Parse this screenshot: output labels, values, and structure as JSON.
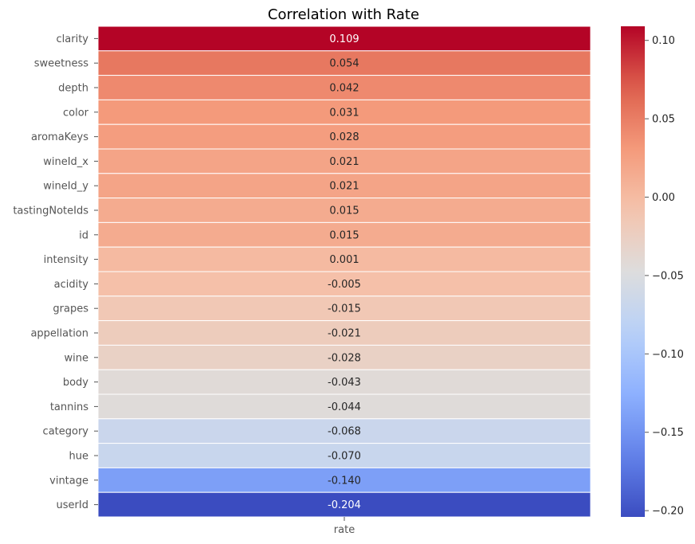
{
  "chart_data": {
    "type": "heatmap",
    "title": "Correlation with Rate",
    "xlabel": "",
    "ylabel": "",
    "columns": [
      "rate"
    ],
    "rows": [
      "clarity",
      "sweetness",
      "depth",
      "color",
      "aromaKeys",
      "wineId_x",
      "wineId_y",
      "tastingNoteIds",
      "id",
      "intensity",
      "acidity",
      "grapes",
      "appellation",
      "wine",
      "body",
      "tannins",
      "category",
      "hue",
      "vintage",
      "userId"
    ],
    "values": [
      0.109,
      0.054,
      0.042,
      0.031,
      0.028,
      0.021,
      0.021,
      0.015,
      0.015,
      0.001,
      -0.005,
      -0.015,
      -0.021,
      -0.028,
      -0.043,
      -0.044,
      -0.068,
      -0.07,
      -0.14,
      -0.204
    ],
    "value_labels": [
      "0.109",
      "0.054",
      "0.042",
      "0.031",
      "0.028",
      "0.021",
      "0.021",
      "0.015",
      "0.015",
      "0.001",
      "-0.005",
      "-0.015",
      "-0.021",
      "-0.028",
      "-0.043",
      "-0.044",
      "-0.068",
      "-0.070",
      "-0.140",
      "-0.204"
    ],
    "colormap": "coolwarm",
    "colorbar": {
      "range": [
        -0.204,
        0.109
      ],
      "ticks": [
        0.1,
        0.05,
        0.0,
        -0.05,
        -0.1,
        -0.15,
        -0.2
      ],
      "tick_labels": [
        "0.10",
        "0.05",
        "0.00",
        "−0.05",
        "−0.10",
        "−0.15",
        "−0.20"
      ],
      "position": "right"
    }
  }
}
